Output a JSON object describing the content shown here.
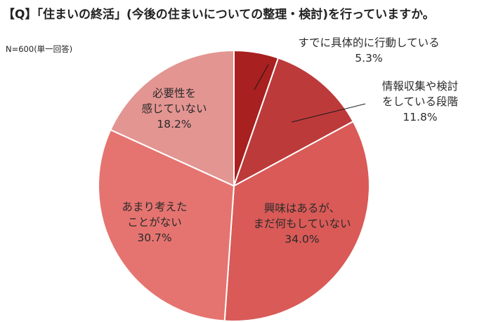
{
  "title": "【Q】「住まいの終活」(今後の住まいについての整理・検討)を行っていますか。",
  "sample_note": "N=600(単一回答)",
  "chart_data": {
    "type": "pie",
    "title": "【Q】「住まいの終活」(今後の住まいについての整理・検討)を行っていますか。",
    "start_angle_deg": 0,
    "direction": "clockwise",
    "slices": [
      {
        "label_lines": [
          "すでに具体的に行動している"
        ],
        "value": 5.3,
        "value_text": "5.3%",
        "color": "#a8201f"
      },
      {
        "label_lines": [
          "情報収集や検討",
          "をしている段階"
        ],
        "value": 11.8,
        "value_text": "11.8%",
        "color": "#bd3a3a"
      },
      {
        "label_lines": [
          "興味はあるが、",
          "まだ何もしていない"
        ],
        "value": 34.0,
        "value_text": "34.0%",
        "color": "#d95a57"
      },
      {
        "label_lines": [
          "あまり考えた",
          "ことがない"
        ],
        "value": 30.7,
        "value_text": "30.7%",
        "color": "#e57470"
      },
      {
        "label_lines": [
          "必要性を",
          "感じていない"
        ],
        "value": 18.2,
        "value_text": "18.2%",
        "color": "#e39592"
      }
    ]
  }
}
